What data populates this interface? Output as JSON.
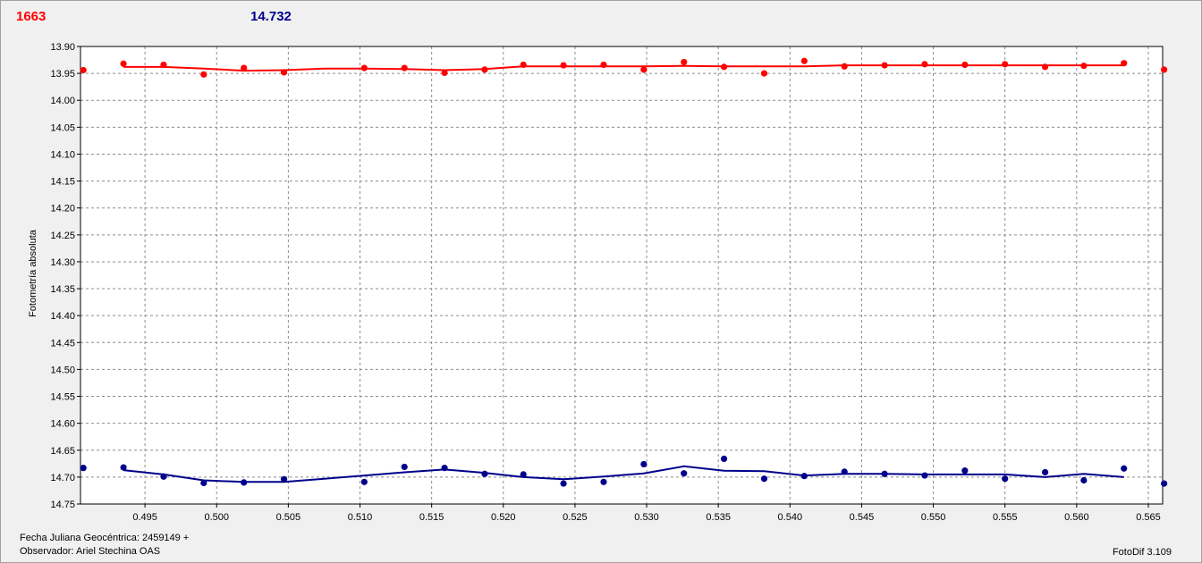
{
  "header": {
    "left_value": "1663",
    "right_value": "14.732"
  },
  "footer": {
    "jd_label": "Fecha Juliana Geocéntrica: 2459149 +",
    "observer_label": "Observador: Ariel Stechina OAS",
    "version_label": "FotoDif 3.109"
  },
  "colors": {
    "series_red": "#ff0000",
    "series_blue": "#00008b",
    "grid": "#8c8c8c",
    "plot_bg": "#ffffff"
  },
  "chart_data": {
    "type": "scatter",
    "ylabel": "Fotometría absoluta",
    "xlim": [
      0.4905,
      0.566
    ],
    "ylim": [
      13.9,
      14.75
    ],
    "y_inverted": true,
    "grid": true,
    "x_ticks": [
      "0.495",
      "0.500",
      "0.505",
      "0.510",
      "0.515",
      "0.520",
      "0.525",
      "0.530",
      "0.535",
      "0.540",
      "0.545",
      "0.550",
      "0.555",
      "0.560",
      "0.565"
    ],
    "y_ticks": [
      "13.90",
      "13.95",
      "14.00",
      "14.05",
      "14.10",
      "14.15",
      "14.20",
      "14.25",
      "14.30",
      "14.35",
      "14.40",
      "14.45",
      "14.50",
      "14.55",
      "14.60",
      "14.65",
      "14.70",
      "14.75"
    ],
    "series": [
      {
        "color": "#ff0000",
        "points": [
          [
            0.4907,
            13.944
          ],
          [
            0.4935,
            13.932
          ],
          [
            0.4963,
            13.934
          ],
          [
            0.4991,
            13.952
          ],
          [
            0.5019,
            13.94
          ],
          [
            0.5047,
            13.948
          ],
          [
            0.5103,
            13.94
          ],
          [
            0.5131,
            13.94
          ],
          [
            0.5159,
            13.949
          ],
          [
            0.5187,
            13.943
          ],
          [
            0.5214,
            13.934
          ],
          [
            0.5242,
            13.935
          ],
          [
            0.527,
            13.934
          ],
          [
            0.5298,
            13.943
          ],
          [
            0.5326,
            13.929
          ],
          [
            0.5354,
            13.938
          ],
          [
            0.5382,
            13.95
          ],
          [
            0.541,
            13.927
          ],
          [
            0.5438,
            13.937
          ],
          [
            0.5466,
            13.935
          ],
          [
            0.5494,
            13.933
          ],
          [
            0.5522,
            13.934
          ],
          [
            0.555,
            13.933
          ],
          [
            0.5578,
            13.938
          ],
          [
            0.5605,
            13.936
          ],
          [
            0.5633,
            13.931
          ],
          [
            0.5661,
            13.943
          ]
        ],
        "trend": [
          [
            0.4935,
            13.938
          ],
          [
            0.4963,
            13.938
          ],
          [
            0.4991,
            13.941
          ],
          [
            0.5019,
            13.945
          ],
          [
            0.5047,
            13.944
          ],
          [
            0.5075,
            13.941
          ],
          [
            0.5103,
            13.941
          ],
          [
            0.5131,
            13.942
          ],
          [
            0.5159,
            13.944
          ],
          [
            0.5187,
            13.942
          ],
          [
            0.5214,
            13.937
          ],
          [
            0.5242,
            13.937
          ],
          [
            0.527,
            13.937
          ],
          [
            0.5298,
            13.937
          ],
          [
            0.5326,
            13.936
          ],
          [
            0.5354,
            13.937
          ],
          [
            0.5382,
            13.937
          ],
          [
            0.541,
            13.937
          ],
          [
            0.5438,
            13.935
          ],
          [
            0.5466,
            13.935
          ],
          [
            0.5494,
            13.935
          ],
          [
            0.5522,
            13.935
          ],
          [
            0.555,
            13.935
          ],
          [
            0.5578,
            13.935
          ],
          [
            0.5605,
            13.935
          ],
          [
            0.5633,
            13.935
          ]
        ]
      },
      {
        "color": "#00008b",
        "points": [
          [
            0.4907,
            14.683
          ],
          [
            0.4935,
            14.682
          ],
          [
            0.4963,
            14.699
          ],
          [
            0.4991,
            14.711
          ],
          [
            0.5019,
            14.71
          ],
          [
            0.5047,
            14.704
          ],
          [
            0.5103,
            14.709
          ],
          [
            0.5131,
            14.681
          ],
          [
            0.5159,
            14.683
          ],
          [
            0.5187,
            14.694
          ],
          [
            0.5214,
            14.695
          ],
          [
            0.5242,
            14.712
          ],
          [
            0.527,
            14.709
          ],
          [
            0.5298,
            14.676
          ],
          [
            0.5326,
            14.693
          ],
          [
            0.5354,
            14.666
          ],
          [
            0.5382,
            14.703
          ],
          [
            0.541,
            14.698
          ],
          [
            0.5438,
            14.69
          ],
          [
            0.5466,
            14.694
          ],
          [
            0.5494,
            14.697
          ],
          [
            0.5522,
            14.688
          ],
          [
            0.555,
            14.703
          ],
          [
            0.5578,
            14.691
          ],
          [
            0.5605,
            14.706
          ],
          [
            0.5633,
            14.684
          ],
          [
            0.5661,
            14.712
          ]
        ],
        "trend": [
          [
            0.4935,
            14.687
          ],
          [
            0.4963,
            14.695
          ],
          [
            0.4991,
            14.706
          ],
          [
            0.5019,
            14.709
          ],
          [
            0.5047,
            14.709
          ],
          [
            0.5075,
            14.703
          ],
          [
            0.5103,
            14.697
          ],
          [
            0.5131,
            14.691
          ],
          [
            0.5159,
            14.686
          ],
          [
            0.5187,
            14.692
          ],
          [
            0.5214,
            14.7
          ],
          [
            0.5242,
            14.704
          ],
          [
            0.527,
            14.699
          ],
          [
            0.5298,
            14.693
          ],
          [
            0.5326,
            14.68
          ],
          [
            0.5354,
            14.688
          ],
          [
            0.5382,
            14.689
          ],
          [
            0.541,
            14.697
          ],
          [
            0.5438,
            14.694
          ],
          [
            0.5466,
            14.694
          ],
          [
            0.5494,
            14.695
          ],
          [
            0.5522,
            14.695
          ],
          [
            0.555,
            14.695
          ],
          [
            0.5578,
            14.7
          ],
          [
            0.5605,
            14.694
          ],
          [
            0.5633,
            14.7
          ]
        ]
      }
    ]
  }
}
